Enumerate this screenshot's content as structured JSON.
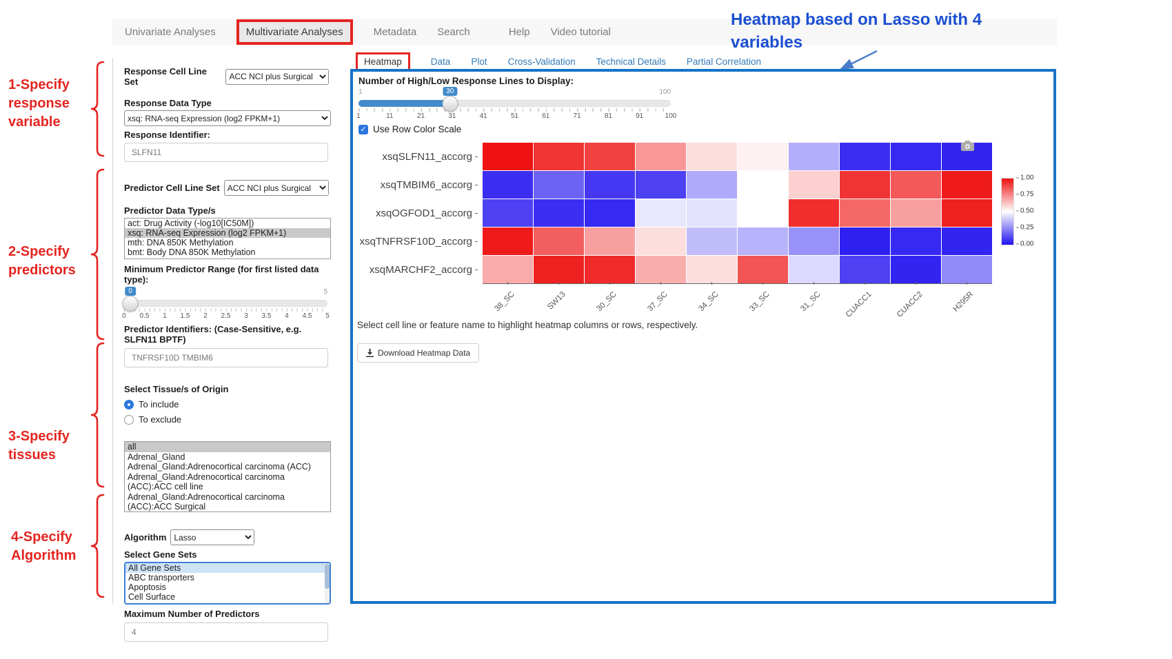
{
  "nav": {
    "items": [
      {
        "label": "Univariate Analyses",
        "active": false
      },
      {
        "label": "Multivariate Analyses",
        "active": true
      },
      {
        "label": "Metadata",
        "active": false
      },
      {
        "label": "Search",
        "active": false
      },
      {
        "label": "Help",
        "active": false
      },
      {
        "label": "Video tutorial",
        "active": false
      }
    ]
  },
  "annotations": {
    "steps": [
      {
        "text": "1-Specify\nresponse\nvariable"
      },
      {
        "text": "2-Specify\npredictors"
      },
      {
        "text": "3-Specify\ntissues"
      },
      {
        "text": "4-Specify\nAlgorithm"
      }
    ],
    "heatmap_note": "Heatmap based on Lasso with 4\nvariables",
    "red": "#e52420",
    "blue": "#1b4fd2"
  },
  "sidebar": {
    "response_cell_line_set": {
      "label": "Response Cell Line Set",
      "value": "ACC NCI plus Surgical"
    },
    "response_data_type": {
      "label": "Response Data Type",
      "value": "xsq: RNA-seq Expression (log2 FPKM+1)"
    },
    "response_identifier": {
      "label": "Response Identifier:",
      "value": "SLFN11"
    },
    "predictor_cell_line_set": {
      "label": "Predictor Cell Line Set",
      "value": "ACC NCI plus Surgical"
    },
    "predictor_data_types": {
      "label": "Predictor Data Type/s",
      "options": [
        "act: Drug Activity (-log10[IC50M])",
        "xsq: RNA-seq Expression (log2 FPKM+1)",
        "mth: DNA 850K Methylation",
        "bmt: Body DNA 850K Methylation"
      ],
      "selected": 1
    },
    "min_predictor_range": {
      "label": "Minimum Predictor Range (for first listed data type):",
      "value": "0",
      "max_label": "5",
      "ticks": [
        "0",
        "0.5",
        "1",
        "1.5",
        "2",
        "2.5",
        "3",
        "3.5",
        "4",
        "4.5",
        "5"
      ]
    },
    "predictor_identifiers": {
      "label": "Predictor Identifiers: (Case-Sensitive, e.g. SLFN11 BPTF)",
      "value": "TNFRSF10D TMBIM6"
    },
    "tissue_origin": {
      "label": "Select Tissue/s of Origin",
      "radios": [
        {
          "label": "To include",
          "checked": true
        },
        {
          "label": "To exclude",
          "checked": false
        }
      ]
    },
    "tissues": {
      "options": [
        "all",
        "Adrenal_Gland",
        "Adrenal_Gland:Adrenocortical carcinoma (ACC)",
        "Adrenal_Gland:Adrenocortical carcinoma (ACC):ACC cell line",
        "Adrenal_Gland:Adrenocortical carcinoma (ACC):ACC Surgical"
      ],
      "selected": 0
    },
    "algorithm": {
      "label": "Algorithm",
      "value": "Lasso"
    },
    "gene_sets": {
      "label": "Select Gene Sets",
      "options": [
        "All Gene Sets",
        "ABC transporters",
        "Apoptosis",
        "Cell Surface"
      ],
      "selected": 0
    },
    "max_predictors": {
      "label": "Maximum Number of Predictors",
      "value": "4"
    }
  },
  "main": {
    "tabs": [
      {
        "label": "Heatmap",
        "active": true
      },
      {
        "label": "Data",
        "active": false
      },
      {
        "label": "Plot",
        "active": false
      },
      {
        "label": "Cross-Validation",
        "active": false
      },
      {
        "label": "Technical Details",
        "active": false
      },
      {
        "label": "Partial Correlation",
        "active": false
      }
    ],
    "lines_slider": {
      "label": "Number of High/Low Response Lines to Display:",
      "value": "30",
      "min_label": "1",
      "max_label": "100",
      "percent": 29.3,
      "ticks": [
        "1",
        "11",
        "21",
        "31",
        "41",
        "51",
        "61",
        "71",
        "81",
        "91",
        "100"
      ]
    },
    "row_color_scale": {
      "label": "Use Row Color Scale",
      "checked": true
    },
    "hint": "Select cell line or feature name to highlight heatmap columns or rows, respectively.",
    "download_button": "Download Heatmap Data"
  },
  "chart_data": {
    "type": "heatmap",
    "title": "",
    "rows": [
      "xsqSLFN11_accorg",
      "xsqTMBIM6_accorg",
      "xsqOGFOD1_accorg",
      "xsqTNFRSF10D_accorg",
      "xsqMARCHF2_accorg"
    ],
    "columns": [
      "38_SC",
      "SW13",
      "30_SC",
      "37_SC",
      "34_SC",
      "33_SC",
      "31_SC",
      "CUACC1",
      "CUACC2",
      "H295R"
    ],
    "z": [
      [
        1.0,
        0.93,
        0.9,
        0.72,
        0.57,
        0.53,
        0.33,
        0.06,
        0.05,
        0.04
      ],
      [
        0.06,
        0.17,
        0.08,
        0.1,
        0.32,
        0.5,
        0.6,
        0.93,
        0.85,
        0.98
      ],
      [
        0.1,
        0.06,
        0.05,
        0.45,
        0.44,
        0.5,
        0.94,
        0.82,
        0.7,
        0.97
      ],
      [
        0.98,
        0.84,
        0.7,
        0.57,
        0.36,
        0.34,
        0.27,
        0.03,
        0.05,
        0.04
      ],
      [
        0.68,
        0.97,
        0.95,
        0.67,
        0.57,
        0.86,
        0.42,
        0.1,
        0.04,
        0.25
      ]
    ],
    "colorscale": {
      "low_color": "#2012f0",
      "mid_color": "#ffffff",
      "high_color": "#ee1212",
      "zmin": 0,
      "zmax": 1
    },
    "colorbar_ticks": [
      "1.00",
      "0.75",
      "0.50",
      "0.25",
      "0.00"
    ],
    "legend_position": "right"
  }
}
